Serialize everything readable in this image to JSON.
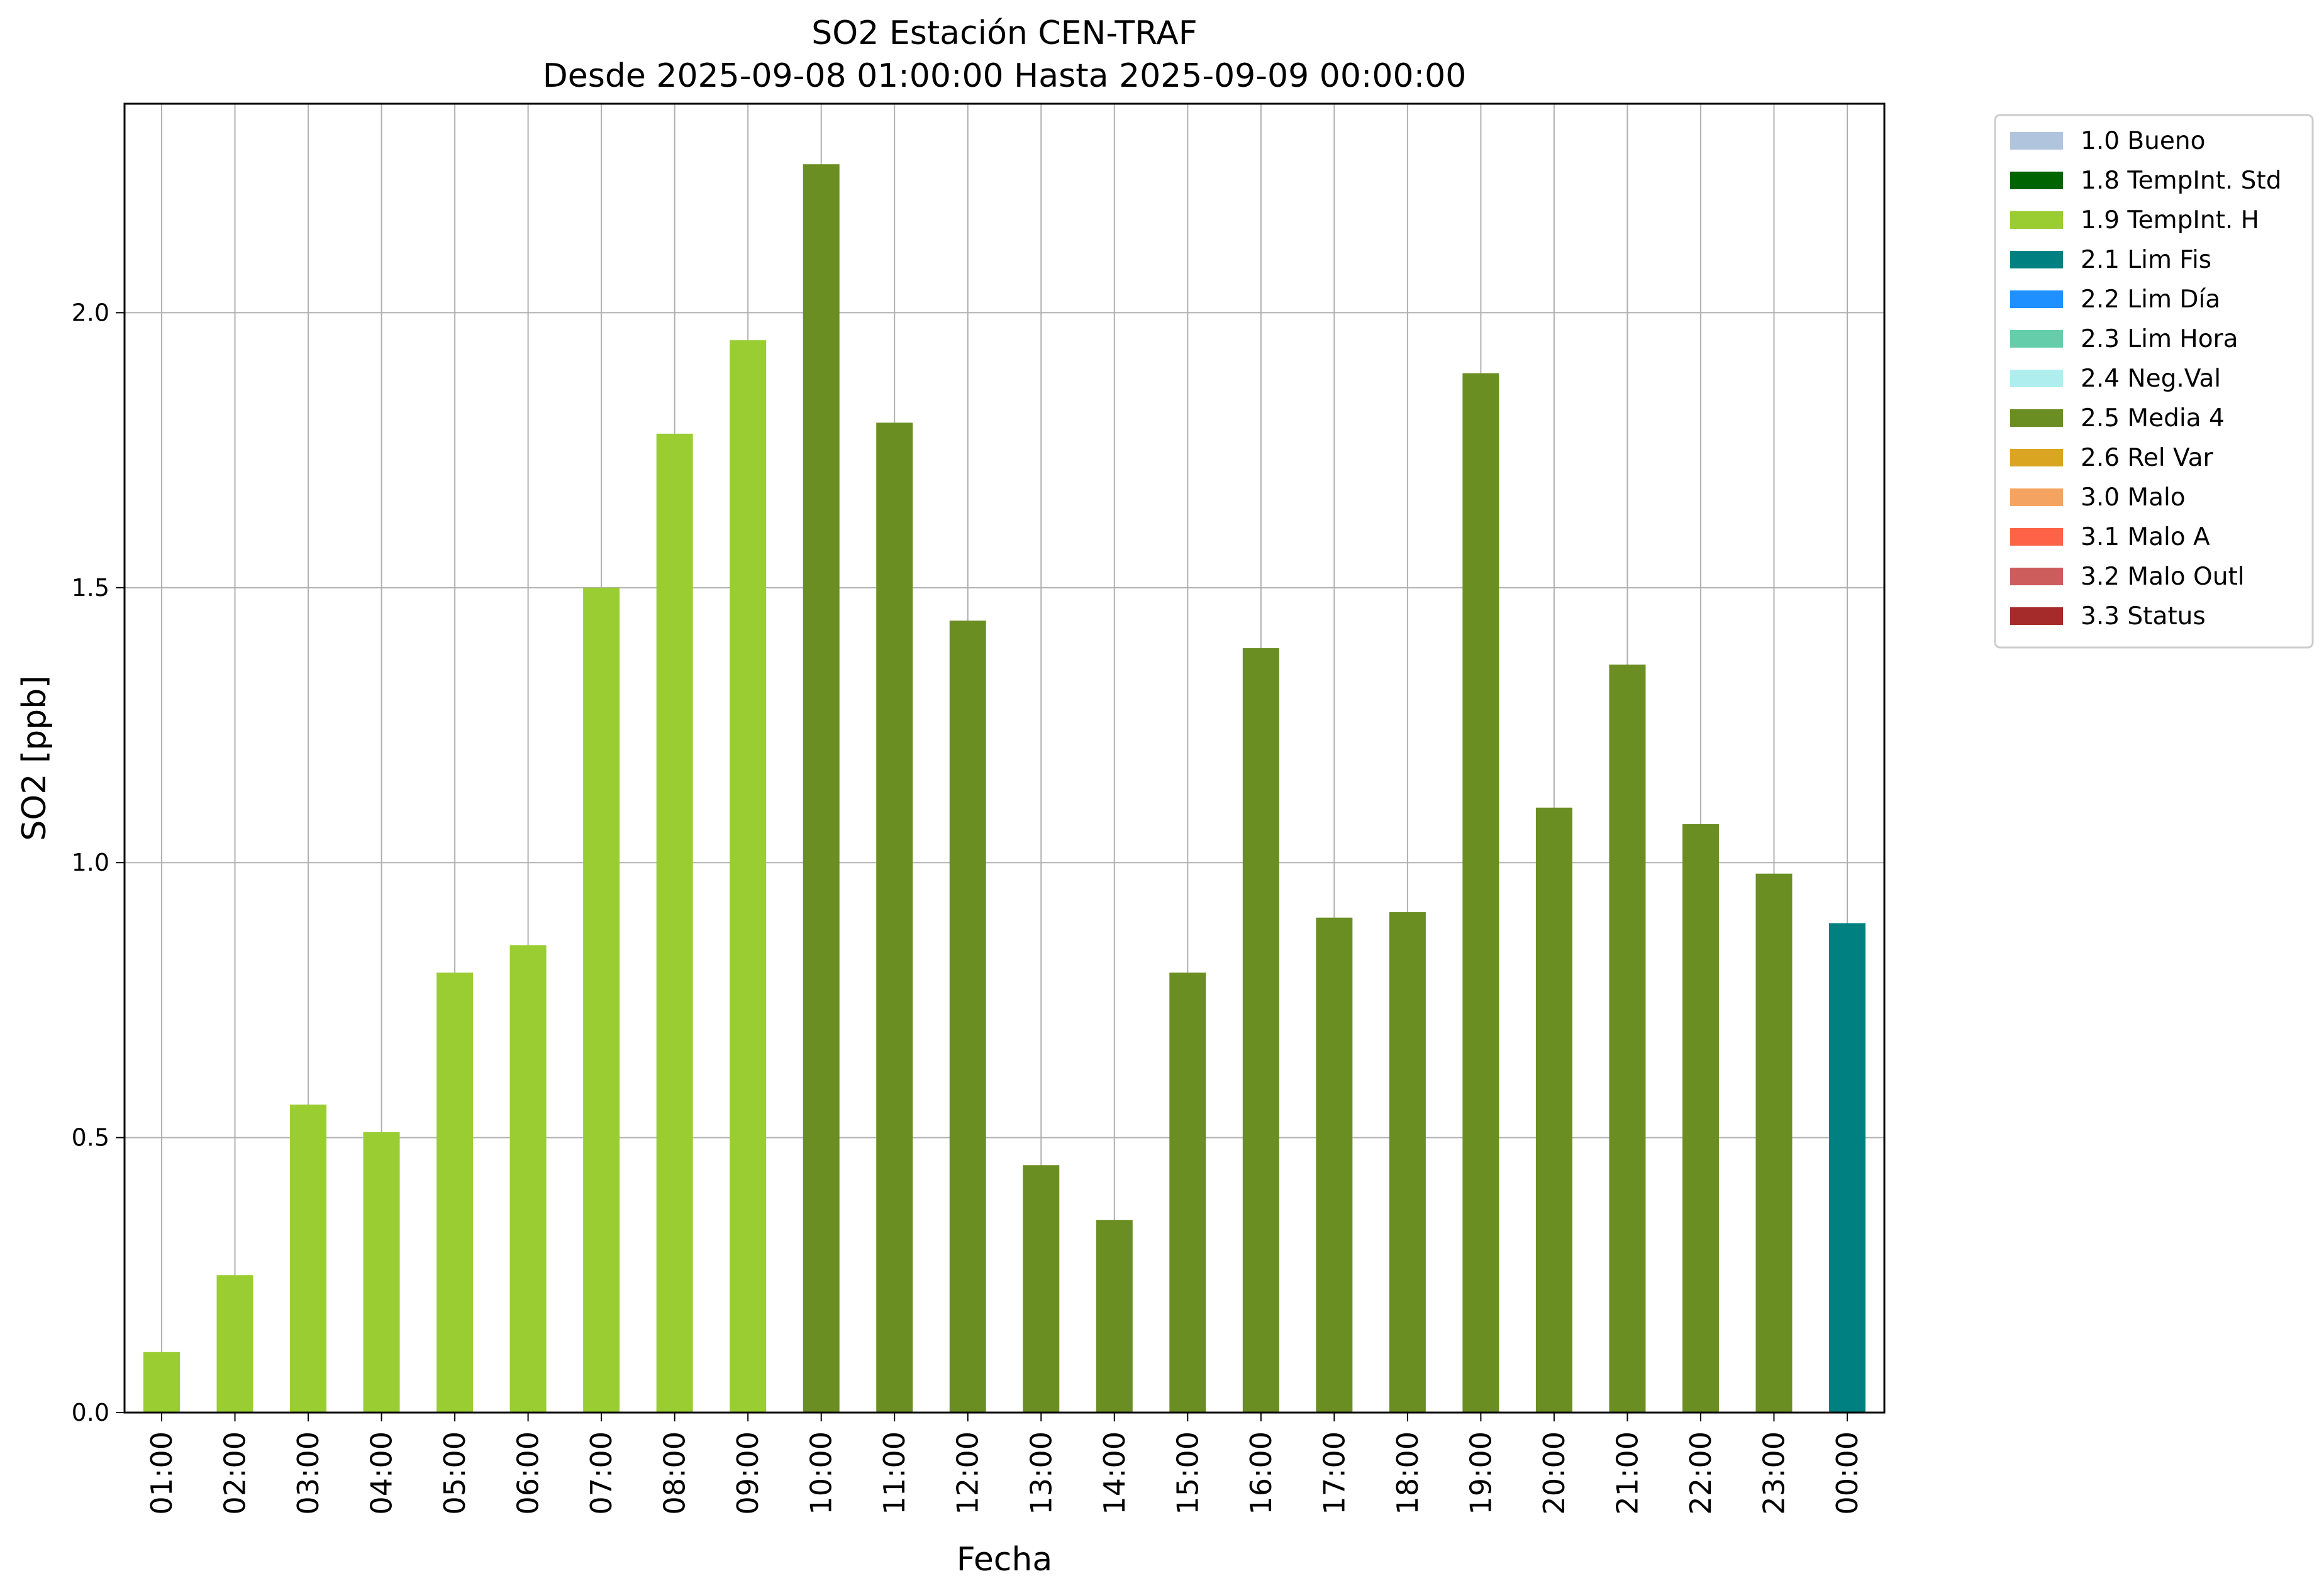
{
  "chart_data": {
    "type": "bar",
    "title": "SO2 Estación CEN-TRAF",
    "subtitle": "Desde 2025-09-08 01:00:00 Hasta 2025-09-09 00:00:00",
    "xlabel": "Fecha",
    "ylabel": "SO2 [ppb]",
    "ylim": [
      0,
      2.38
    ],
    "yticks": [
      "0.0",
      "0.5",
      "1.0",
      "1.5",
      "2.0"
    ],
    "grid": true,
    "legend_position": "outside-right-top",
    "categories": [
      "01:00",
      "02:00",
      "03:00",
      "04:00",
      "05:00",
      "06:00",
      "07:00",
      "08:00",
      "09:00",
      "10:00",
      "11:00",
      "12:00",
      "13:00",
      "14:00",
      "15:00",
      "16:00",
      "17:00",
      "18:00",
      "19:00",
      "20:00",
      "21:00",
      "22:00",
      "23:00",
      "00:00"
    ],
    "values": [
      0.11,
      0.25,
      0.56,
      0.51,
      0.8,
      0.85,
      1.5,
      1.78,
      1.95,
      2.27,
      1.8,
      1.44,
      0.45,
      0.35,
      0.8,
      1.39,
      0.9,
      0.91,
      1.89,
      1.1,
      1.36,
      1.07,
      0.98,
      0.89
    ],
    "bar_flags": [
      "1.9",
      "1.9",
      "1.9",
      "1.9",
      "1.9",
      "1.9",
      "1.9",
      "1.9",
      "1.9",
      "2.5",
      "2.5",
      "2.5",
      "2.5",
      "2.5",
      "2.5",
      "2.5",
      "2.5",
      "2.5",
      "2.5",
      "2.5",
      "2.5",
      "2.5",
      "2.5",
      "2.1"
    ],
    "legend": [
      {
        "code": "1.0",
        "label": "1.0 Bueno",
        "color": "#b0c4de"
      },
      {
        "code": "1.8",
        "label": "1.8 TempInt. Std",
        "color": "#006400"
      },
      {
        "code": "1.9",
        "label": "1.9 TempInt. H",
        "color": "#9acd32"
      },
      {
        "code": "2.1",
        "label": "2.1 Lim Fis",
        "color": "#008080"
      },
      {
        "code": "2.2",
        "label": "2.2 Lim Día",
        "color": "#1e90ff"
      },
      {
        "code": "2.3",
        "label": "2.3 Lim Hora",
        "color": "#66cdaa"
      },
      {
        "code": "2.4",
        "label": "2.4 Neg.Val",
        "color": "#afeeee"
      },
      {
        "code": "2.5",
        "label": "2.5 Media 4",
        "color": "#6b8e23"
      },
      {
        "code": "2.6",
        "label": "2.6 Rel Var",
        "color": "#daa520"
      },
      {
        "code": "3.0",
        "label": "3.0 Malo",
        "color": "#f4a460"
      },
      {
        "code": "3.1",
        "label": "3.1 Malo A",
        "color": "#ff6347"
      },
      {
        "code": "3.2",
        "label": "3.2 Malo Outl",
        "color": "#cd5c5c"
      },
      {
        "code": "3.3",
        "label": "3.3 Status",
        "color": "#a52a2a"
      }
    ]
  }
}
